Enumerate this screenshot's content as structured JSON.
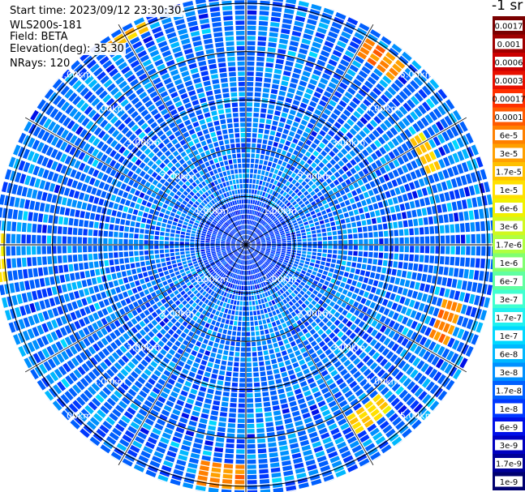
{
  "info": {
    "start_time": "Start time: 2023/09/12 23:30:30",
    "instrument": "WLS200s-181",
    "field": "Field: BETA",
    "elevation": "Elevation(deg): 35.30",
    "nrays": "NRays: 120"
  },
  "colorbar": {
    "title": "-1 sr",
    "ticks": [
      "0.0017",
      "0.001",
      "0.0006",
      "0.0003",
      "0.00017",
      "0.0001",
      "6e-5",
      "3e-5",
      "1.7e-5",
      "1e-5",
      "6e-6",
      "3e-6",
      "1.7e-6",
      "1e-6",
      "6e-7",
      "3e-7",
      "1.7e-7",
      "1e-7",
      "6e-8",
      "3e-8",
      "1.7e-8",
      "1e-8",
      "6e-9",
      "3e-9",
      "1.7e-9",
      "1e-9"
    ],
    "colors": [
      "#7a0000",
      "#a00000",
      "#cc0000",
      "#e81000",
      "#ff3000",
      "#ff5a00",
      "#ff8000",
      "#ffa000",
      "#ffc000",
      "#ffe000",
      "#f0f000",
      "#d0f820",
      "#b0ff40",
      "#80ff70",
      "#60ffa0",
      "#40ffd0",
      "#20f0f0",
      "#00d8ff",
      "#00b8ff",
      "#0090ff",
      "#0060ff",
      "#0038ff",
      "#0010e8",
      "#0000c0",
      "#000098",
      "#000070"
    ]
  },
  "chart_data": {
    "type": "heatmap",
    "title": "",
    "projection": "polar (PPI)",
    "n_rays": 120,
    "range_rings": [
      "1.00km",
      "2.00km",
      "3.00km",
      "4.00km",
      "5.00km"
    ],
    "range_max_km": 5.2,
    "value_scale": "log",
    "value_range": [
      1e-09,
      0.0017
    ],
    "dominant_values": "mostly 1e-8 to 3e-8 (blue); near-range gates ~1e-8",
    "high_value_patches": [
      {
        "azimuth_deg": 330,
        "range_km": "4.9-5.0",
        "value": "3e-5 to 1e-5"
      },
      {
        "azimuth_deg": 35,
        "range_km": "4.6-4.9",
        "value": "3e-5 to 6e-5"
      },
      {
        "azimuth_deg": 63,
        "range_km": "4.1-4.3",
        "value": "1e-5 to 1.7e-5"
      },
      {
        "azimuth_deg": 112,
        "range_km": "4.3-4.6",
        "value": "6e-5 to 3e-5"
      },
      {
        "azimuth_deg": 145,
        "range_km": "4.2-4.5",
        "value": "1.7e-5"
      },
      {
        "azimuth_deg": 185,
        "range_km": "4.6-5.0",
        "value": "3e-5 to 6e-5"
      },
      {
        "azimuth_deg": 268,
        "range_km": "5.0-5.2",
        "value": "1e-5"
      }
    ]
  }
}
